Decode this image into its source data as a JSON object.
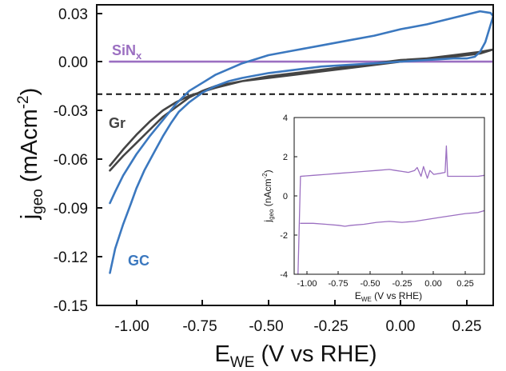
{
  "chart_data": [
    {
      "type": "line",
      "xlabel_main": "E",
      "xlabel_sub": "WE",
      "xlabel_rest": " (V vs RHE)",
      "ylabel_main": "j",
      "ylabel_sub": "geo",
      "ylabel_rest": " (mAcm",
      "ylabel_sup": "-2",
      "ylabel_close": ")",
      "xlim": [
        -1.15,
        0.35
      ],
      "ylim": [
        -0.15,
        0.035
      ],
      "xticks": [
        -1.0,
        -0.75,
        -0.5,
        -0.25,
        0.0,
        0.25
      ],
      "xtick_labels": [
        "-1.00",
        "-0.75",
        "-0.50",
        "-0.25",
        "0.00",
        "0.25"
      ],
      "yticks": [
        0.03,
        0.0,
        -0.03,
        -0.06,
        -0.09,
        -0.12,
        -0.15
      ],
      "ytick_labels": [
        "0.03",
        "0.00",
        "-0.03",
        "-0.06",
        "-0.09",
        "-0.12",
        "-0.15"
      ],
      "reference_line": {
        "y": -0.02,
        "style": "dashed",
        "color": "#111111"
      },
      "series": [
        {
          "name": "SiNx",
          "label_main": "SiN",
          "label_sub": "x",
          "color": "#9b6fc1",
          "x": [
            -1.1,
            0.35
          ],
          "y": [
            0.0,
            0.0
          ]
        },
        {
          "name": "Gr",
          "label_main": "Gr",
          "color": "#444444",
          "x": [
            -1.1,
            -1.05,
            -1.0,
            -0.95,
            -0.9,
            -0.85,
            -0.8,
            -0.75,
            -0.7,
            -0.6,
            -0.5,
            -0.4,
            -0.3,
            -0.2,
            -0.1,
            0.0,
            0.1,
            0.2,
            0.3,
            0.35,
            0.3,
            0.2,
            0.1,
            0.0,
            -0.1,
            -0.2,
            -0.3,
            -0.4,
            -0.5,
            -0.6,
            -0.7,
            -0.8,
            -0.85,
            -0.9,
            -0.95,
            -1.0,
            -1.05,
            -1.1
          ],
          "y": [
            -0.067,
            -0.058,
            -0.05,
            -0.042,
            -0.034,
            -0.028,
            -0.022,
            -0.018,
            -0.015,
            -0.012,
            -0.01,
            -0.008,
            -0.006,
            -0.004,
            -0.002,
            0.0,
            0.002,
            0.004,
            0.006,
            0.0075,
            0.005,
            0.003,
            0.002,
            0.001,
            -0.001,
            -0.003,
            -0.005,
            -0.007,
            -0.009,
            -0.012,
            -0.016,
            -0.021,
            -0.025,
            -0.03,
            -0.037,
            -0.045,
            -0.054,
            -0.064
          ]
        },
        {
          "name": "GC",
          "label_main": "GC",
          "color": "#3b78bf",
          "x": [
            -1.1,
            -1.08,
            -1.05,
            -1.02,
            -1.0,
            -0.97,
            -0.93,
            -0.9,
            -0.87,
            -0.84,
            -0.8,
            -0.75,
            -0.7,
            -0.65,
            -0.6,
            -0.5,
            -0.4,
            -0.3,
            -0.2,
            -0.1,
            0.0,
            0.1,
            0.2,
            0.25,
            0.28,
            0.3,
            0.32,
            0.35,
            0.34,
            0.3,
            0.2,
            0.1,
            0.0,
            -0.1,
            -0.2,
            -0.3,
            -0.4,
            -0.5,
            -0.6,
            -0.7,
            -0.8,
            -0.85,
            -0.9,
            -0.95,
            -1.0,
            -1.05,
            -1.08,
            -1.1
          ],
          "y": [
            -0.13,
            -0.115,
            -0.1,
            -0.087,
            -0.078,
            -0.067,
            -0.055,
            -0.046,
            -0.038,
            -0.031,
            -0.025,
            -0.019,
            -0.015,
            -0.012,
            -0.01,
            -0.007,
            -0.005,
            -0.003,
            -0.002,
            -0.001,
            0.0,
            0.001,
            0.002,
            0.002,
            0.003,
            0.006,
            0.012,
            0.028,
            0.03,
            0.031,
            0.027,
            0.023,
            0.02,
            0.016,
            0.013,
            0.01,
            0.007,
            0.004,
            -0.001,
            -0.008,
            -0.018,
            -0.026,
            -0.036,
            -0.046,
            -0.057,
            -0.07,
            -0.08,
            -0.087
          ]
        }
      ]
    },
    {
      "type": "line",
      "inset": true,
      "xlabel_main": "E",
      "xlabel_sub": "WE",
      "xlabel_rest": " (V vs RHE)",
      "ylabel_main": "j",
      "ylabel_sub": "geo",
      "ylabel_rest": " (nAcm",
      "ylabel_sup": "-2",
      "ylabel_close": ")",
      "xlim": [
        -1.15,
        0.35
      ],
      "ylim": [
        -4,
        4
      ],
      "xticks": [
        -1.0,
        -0.75,
        -0.5,
        -0.25,
        0.0,
        0.25
      ],
      "xtick_labels": [
        "-1.00",
        "-0.75",
        "-0.50",
        "-0.25",
        "0.00",
        "0.25"
      ],
      "yticks": [
        4,
        2,
        0,
        -2,
        -4
      ],
      "ytick_labels": [
        "4",
        "2",
        "0",
        "-2",
        "-4"
      ],
      "series": [
        {
          "name": "SiNx-forward",
          "color": "#9b6fc1",
          "x": [
            -1.12,
            -1.1,
            -1.0,
            -0.9,
            -0.8,
            -0.7,
            -0.6,
            -0.5,
            -0.4,
            -0.35,
            -0.3,
            -0.25,
            -0.2,
            -0.18,
            -0.15,
            -0.13,
            -0.1,
            -0.08,
            -0.05,
            0.0,
            0.04,
            0.05,
            0.06,
            0.06,
            0.1,
            0.2,
            0.3,
            0.35
          ],
          "y": [
            -4.0,
            1.0,
            1.05,
            1.1,
            1.15,
            1.2,
            1.25,
            1.3,
            1.35,
            1.3,
            1.25,
            1.2,
            1.3,
            1.45,
            1.0,
            1.5,
            0.9,
            1.3,
            1.1,
            1.15,
            1.2,
            2.55,
            1.0,
            1.0,
            1.0,
            1.0,
            1.0,
            1.05
          ]
        },
        {
          "name": "SiNx-reverse",
          "color": "#9b6fc1",
          "x": [
            0.35,
            0.3,
            0.2,
            0.1,
            0.0,
            -0.1,
            -0.2,
            -0.3,
            -0.4,
            -0.5,
            -0.6,
            -0.7,
            -0.75,
            -0.8,
            -0.9,
            -1.0,
            -1.1
          ],
          "y": [
            -0.75,
            -0.85,
            -0.9,
            -1.0,
            -1.1,
            -1.2,
            -1.3,
            -1.35,
            -1.3,
            -1.35,
            -1.45,
            -1.5,
            -1.55,
            -1.5,
            -1.45,
            -1.4,
            -1.4
          ]
        }
      ]
    }
  ]
}
